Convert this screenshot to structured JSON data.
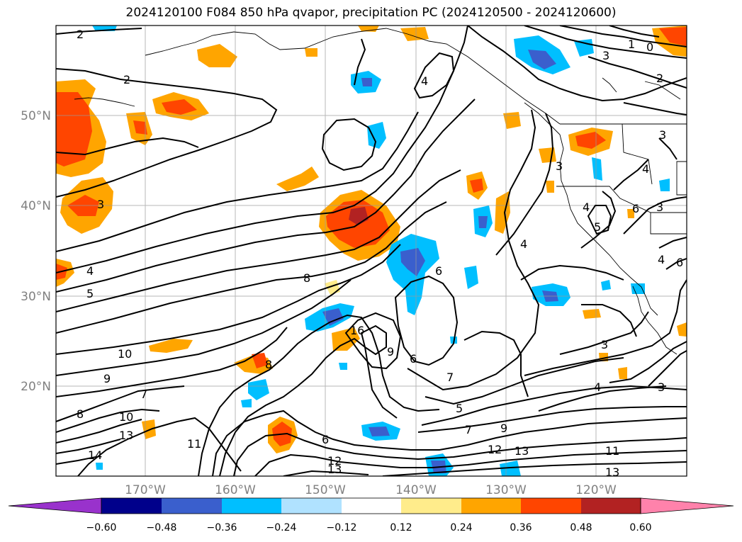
{
  "title": "2024120100 F084 850 hPa qvapor, precipitation PC (2024120500 - 2024120600)",
  "lat_labels": [
    "50°N",
    "40°N",
    "30°N",
    "20°N"
  ],
  "lon_labels": [
    "170°W",
    "160°W",
    "150°W",
    "140°W",
    "130°W",
    "120°W"
  ],
  "colorbar": {
    "ticks": [
      "−0.60",
      "−0.48",
      "−0.36",
      "−0.24",
      "−0.12",
      "0.12",
      "0.24",
      "0.36",
      "0.48",
      "0.60"
    ],
    "colors": [
      "#9932cc",
      "#00008b",
      "#3a5fcd",
      "#00bfff",
      "#b0e2ff",
      "#ffffff",
      "#ffec8b",
      "#ffa500",
      "#ff4500",
      "#b22222",
      "#ff82ab"
    ]
  },
  "contour_labels": [
    "2",
    "2",
    "3",
    "4",
    "5",
    "8",
    "10",
    "9",
    "8",
    "10",
    "13",
    "14",
    "11",
    "7",
    "8",
    "6",
    "13",
    "12",
    "6",
    "7",
    "5",
    "7",
    "9",
    "12",
    "13",
    "11",
    "13",
    "4",
    "3",
    "3",
    "4",
    "1",
    "0",
    "3",
    "2",
    "4",
    "3",
    "6",
    "3",
    "4",
    "5",
    "4",
    "3",
    "4",
    "16",
    "6",
    "9",
    "6"
  ]
}
